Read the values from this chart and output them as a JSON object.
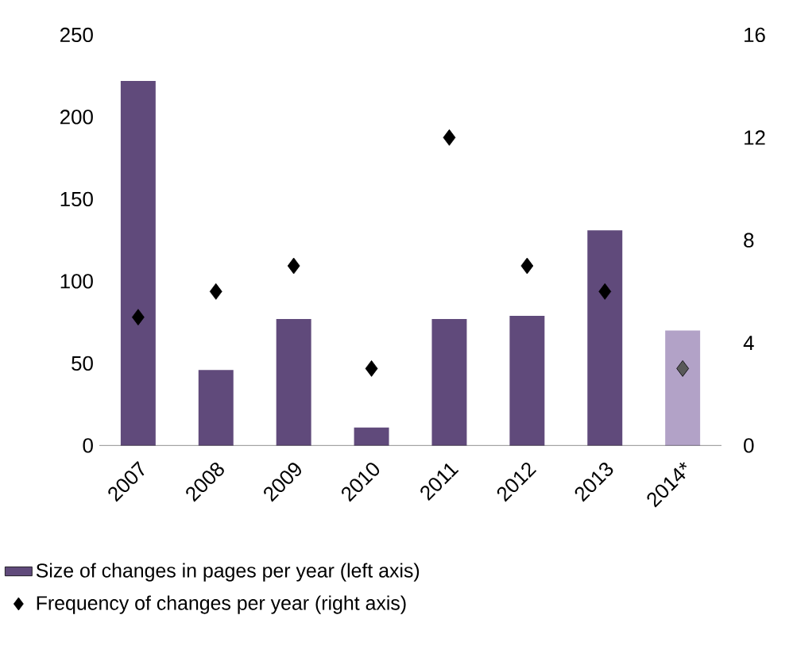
{
  "chart_data": {
    "type": "bar",
    "categories": [
      "2007",
      "2008",
      "2009",
      "2010",
      "2011",
      "2012",
      "2013",
      "2014*"
    ],
    "series": [
      {
        "name": "Size of changes in pages per year (left axis)",
        "colors": [
          "#604a7b",
          "#604a7b",
          "#604a7b",
          "#604a7b",
          "#604a7b",
          "#604a7b",
          "#604a7b",
          "#b2a2c7"
        ],
        "values": [
          222,
          46,
          77,
          11,
          77,
          79,
          131,
          70
        ]
      },
      {
        "name": "Frequency of changes per year (right axis)",
        "type": "scatter",
        "axis": "y2",
        "colors": [
          "#000000",
          "#000000",
          "#000000",
          "#000000",
          "#000000",
          "#000000",
          "#000000",
          "#595959"
        ],
        "values": [
          5,
          6,
          7,
          3,
          12,
          7,
          6,
          3
        ]
      }
    ],
    "ylim": [
      0,
      250
    ],
    "yticks": [
      0,
      50,
      100,
      150,
      200,
      250
    ],
    "y2lim": [
      0,
      16
    ],
    "y2ticks": [
      0,
      4,
      8,
      12,
      16
    ],
    "marker": "diamond",
    "legend": "bottom",
    "grid": false
  }
}
